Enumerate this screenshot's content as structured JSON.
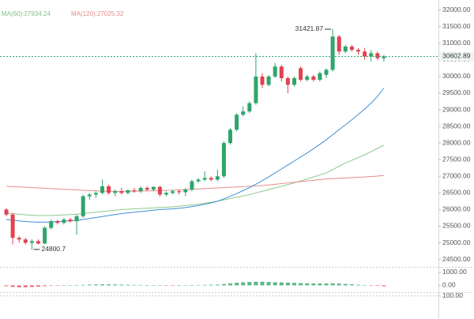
{
  "chart_data": [
    {
      "type": "candlestick",
      "open": [
        26000,
        25850,
        25150,
        25100,
        25000,
        25050,
        24980,
        25450,
        25650,
        25600,
        25700,
        25650,
        25800,
        26400,
        26450,
        26500,
        26700,
        26500,
        26550,
        26500,
        26580,
        26550,
        26650,
        26600,
        26680,
        26450,
        26500,
        26550,
        26520,
        26600,
        26850,
        26900,
        26950,
        26900,
        27000,
        28000,
        28400,
        28850,
        28950,
        29200,
        30000,
        29750,
        30000,
        30300,
        29950,
        29750,
        30250,
        29900,
        30000,
        29900,
        30050,
        30200,
        31200,
        30750,
        30900,
        30800,
        30750,
        30600,
        30700,
        30550
      ],
      "high": [
        26050,
        25900,
        25200,
        25150,
        25100,
        25100,
        25500,
        25700,
        25700,
        25750,
        25750,
        25850,
        26450,
        26500,
        26550,
        26900,
        26750,
        26600,
        26650,
        26600,
        26650,
        26700,
        26700,
        26700,
        26720,
        26550,
        26600,
        26600,
        26650,
        26900,
        26950,
        27150,
        27000,
        27200,
        28050,
        28450,
        28900,
        29100,
        29250,
        30700,
        30100,
        30050,
        30400,
        30350,
        30000,
        30000,
        30300,
        30050,
        30050,
        30150,
        30250,
        31421.87,
        31250,
        30950,
        30950,
        30850,
        30850,
        30800,
        30750,
        30650
      ],
      "low": [
        25800,
        24950,
        25000,
        24950,
        24800.7,
        24950,
        24950,
        25400,
        25550,
        25550,
        25600,
        25250,
        25750,
        26300,
        26350,
        26450,
        26450,
        26400,
        26450,
        26450,
        26500,
        26500,
        26550,
        26550,
        26400,
        26400,
        26450,
        26450,
        26400,
        26550,
        26800,
        26850,
        26850,
        26850,
        26950,
        27950,
        28350,
        28800,
        28900,
        29150,
        29650,
        29700,
        29950,
        29850,
        29500,
        29700,
        29850,
        29850,
        29850,
        29850,
        29950,
        30150,
        30650,
        30700,
        30750,
        30650,
        30500,
        30450,
        30500,
        30450
      ],
      "close": [
        25850,
        25150,
        25100,
        25000,
        25050,
        24980,
        25450,
        25650,
        25600,
        25700,
        25650,
        25800,
        26400,
        26450,
        26500,
        26700,
        26500,
        26550,
        26500,
        26580,
        26550,
        26650,
        26600,
        26680,
        26450,
        26500,
        26550,
        26520,
        26600,
        26850,
        26900,
        26950,
        26900,
        27000,
        28000,
        28400,
        28850,
        28950,
        29200,
        30000,
        29750,
        30000,
        30300,
        29950,
        29750,
        29950,
        29900,
        30000,
        29900,
        30100,
        30200,
        31200,
        30750,
        30900,
        30800,
        30750,
        30600,
        30700,
        30550,
        30602.89
      ],
      "up_color": "#2fa56c",
      "down_color": "#e2424f",
      "ylim": [
        24300,
        32300
      ],
      "yticks": [
        {
          "value": 24500,
          "label": "24500.00"
        },
        {
          "value": 25000,
          "label": "25000.00"
        },
        {
          "value": 25500,
          "label": "25500.00"
        },
        {
          "value": 26000,
          "label": "26000.00"
        },
        {
          "value": 26500,
          "label": "26500.00"
        },
        {
          "value": 27000,
          "label": "27000.00"
        },
        {
          "value": 27500,
          "label": "27500.00"
        },
        {
          "value": 28000,
          "label": "28000.00"
        },
        {
          "value": 28500,
          "label": "28500.00"
        },
        {
          "value": 29000,
          "label": "29000.00"
        },
        {
          "value": 29500,
          "label": "29500.00"
        },
        {
          "value": 30000,
          "label": "30000.00"
        },
        {
          "value": 30500,
          "label": "30500.00"
        },
        {
          "value": 31000,
          "label": "31000.00"
        },
        {
          "value": 31500,
          "label": "31500.00"
        },
        {
          "value": 32000,
          "label": "32000.00"
        }
      ],
      "series": [
        {
          "name": "MA(60):27934.24",
          "color": "#8bc98b",
          "values": [
            25900,
            25880,
            25860,
            25840,
            25830,
            25820,
            25820,
            25820,
            25830,
            25840,
            25850,
            25860,
            25880,
            25900,
            25920,
            25940,
            25960,
            25980,
            26000,
            26010,
            26020,
            26030,
            26040,
            26050,
            26060,
            26070,
            26080,
            26100,
            26120,
            26140,
            26160,
            26190,
            26220,
            26250,
            26290,
            26330,
            26370,
            26410,
            26450,
            26500,
            26550,
            26600,
            26650,
            26700,
            26750,
            26800,
            26860,
            26920,
            26980,
            27040,
            27100,
            27200,
            27300,
            27400,
            27480,
            27560,
            27650,
            27740,
            27840,
            27934.24
          ]
        },
        {
          "name": "MA(120):27025.32",
          "color": "#e58c8c",
          "values": [
            26700,
            26690,
            26680,
            26670,
            26660,
            26650,
            26640,
            26630,
            26620,
            26610,
            26600,
            26590,
            26580,
            26570,
            26560,
            26555,
            26550,
            26550,
            26550,
            26550,
            26550,
            26555,
            26560,
            26565,
            26570,
            26575,
            26580,
            26590,
            26600,
            26610,
            26620,
            26630,
            26640,
            26650,
            26660,
            26670,
            26680,
            26690,
            26700,
            26710,
            26720,
            26740,
            26760,
            26780,
            26800,
            26820,
            26840,
            26860,
            26880,
            26900,
            26920,
            26930,
            26940,
            26950,
            26960,
            26970,
            26980,
            26990,
            27005,
            27025.32
          ]
        },
        {
          "color": "#3b8fd6",
          "values": [
            25700,
            25680,
            25660,
            25640,
            25630,
            25620,
            25620,
            25630,
            25640,
            25650,
            25660,
            25680,
            25700,
            25730,
            25760,
            25790,
            25820,
            25850,
            25880,
            25900,
            25920,
            25940,
            25960,
            25980,
            26000,
            26010,
            26020,
            26040,
            26060,
            26090,
            26120,
            26160,
            26200,
            26250,
            26320,
            26400,
            26480,
            26570,
            26660,
            26760,
            26870,
            26980,
            27100,
            27220,
            27340,
            27460,
            27580,
            27700,
            27830,
            27960,
            28100,
            28250,
            28400,
            28550,
            28700,
            28860,
            29020,
            29200,
            29400,
            29650
          ]
        }
      ]
    },
    {
      "type": "bar",
      "values": [
        -60,
        -120,
        -150,
        -140,
        -120,
        -100,
        -60,
        -30,
        -10,
        0,
        10,
        20,
        40,
        60,
        70,
        80,
        80,
        70,
        60,
        50,
        40,
        30,
        20,
        10,
        0,
        -10,
        -10,
        0,
        10,
        20,
        30,
        40,
        50,
        60,
        100,
        150,
        200,
        240,
        260,
        280,
        280,
        260,
        240,
        230,
        210,
        190,
        170,
        160,
        150,
        150,
        140,
        160,
        140,
        110,
        80,
        50,
        20,
        -10,
        -40,
        -70
      ],
      "up_color": "#2fa56c",
      "down_color": "#e2424f",
      "ylim": [
        -400,
        1300
      ],
      "yticks": [
        {
          "value": 0,
          "label": "0.00"
        },
        {
          "value": 1000,
          "label": "1000.00"
        }
      ]
    },
    {
      "type": "line",
      "ylim": [
        0,
        110
      ],
      "yticks": [
        {
          "value": 100,
          "label": "100.00"
        }
      ]
    }
  ]
}
